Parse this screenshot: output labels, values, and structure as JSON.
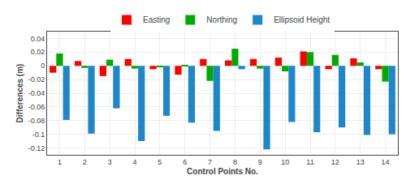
{
  "chart_data": {
    "type": "bar",
    "xlabel": "Control Points No.",
    "ylabel": "Differences (m)",
    "categories": [
      1,
      2,
      3,
      4,
      5,
      6,
      7,
      8,
      9,
      10,
      11,
      12,
      13,
      14
    ],
    "series": [
      {
        "name": "Easting",
        "color": "#FF0000",
        "values": [
          -0.01,
          0.007,
          -0.015,
          0.01,
          -0.005,
          -0.013,
          0.01,
          0.008,
          0.01,
          0.012,
          0.021,
          -0.005,
          0.011,
          -0.005
        ]
      },
      {
        "name": "Northing",
        "color": "#00AA00",
        "values": [
          0.018,
          -0.003,
          0.009,
          -0.004,
          -0.001,
          0.001,
          -0.022,
          0.025,
          -0.004,
          -0.008,
          0.02,
          0.016,
          0.005,
          -0.023
        ]
      },
      {
        "name": "Ellipsoid Height",
        "color": "#1E87C9",
        "values": [
          -0.079,
          -0.099,
          -0.062,
          -0.11,
          -0.073,
          -0.083,
          -0.095,
          -0.005,
          -0.122,
          -0.082,
          -0.097,
          -0.09,
          -0.101,
          -0.1
        ]
      }
    ],
    "ylim": [
      -0.13,
      0.05
    ],
    "yticks": [
      -0.12,
      -0.1,
      -0.08,
      -0.06,
      -0.04,
      -0.02,
      0,
      0.02,
      0.04
    ],
    "grid": true,
    "legend": "upper center"
  }
}
